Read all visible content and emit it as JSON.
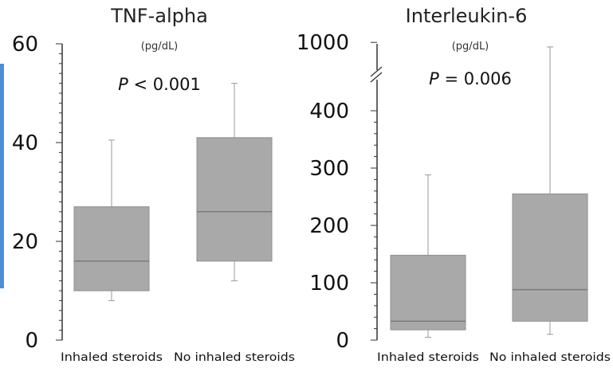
{
  "chart_data": [
    {
      "type": "box",
      "title": "TNF-alpha",
      "unit": "(pg/dL)",
      "annotation": {
        "p_label": "P",
        "p_text": " < 0.001"
      },
      "yticks": [
        "0",
        "20",
        "40",
        "60"
      ],
      "ylim": [
        0,
        60
      ],
      "categories": [
        "Inhaled steroids",
        "No inhaled steroids"
      ],
      "boxes": [
        {
          "whisker_low": 8,
          "q1": 10,
          "median": 16,
          "q3": 27,
          "whisker_high": 40.5
        },
        {
          "whisker_low": 12,
          "q1": 16,
          "median": 26,
          "q3": 41,
          "whisker_high": 52
        }
      ],
      "colors": {
        "box_fill": "#a9a9a9",
        "median": "#7a7a7a",
        "whisker": "#9a9a9a",
        "axis": "#333333"
      }
    },
    {
      "type": "box",
      "title": "Interleukin-6",
      "unit": "(pg/dL)",
      "annotation": {
        "p_label": "P",
        "p_text": " = 0.006"
      },
      "yticks": [
        "0",
        "100",
        "200",
        "300",
        "400",
        "1000"
      ],
      "ylim": [
        0,
        1000
      ],
      "axis_break": "between 400 and 1000",
      "categories": [
        "Inhaled steroids",
        "No inhaled steroids"
      ],
      "boxes": [
        {
          "whisker_low": 5,
          "q1": 18,
          "median": 33,
          "q3": 148,
          "whisker_high": 288
        },
        {
          "whisker_low": 10,
          "q1": 33,
          "median": 88,
          "q3": 255,
          "whisker_high": 960
        }
      ],
      "colors": {
        "box_fill": "#a9a9a9",
        "median": "#7a7a7a",
        "whisker": "#9a9a9a",
        "axis": "#333333"
      }
    }
  ]
}
